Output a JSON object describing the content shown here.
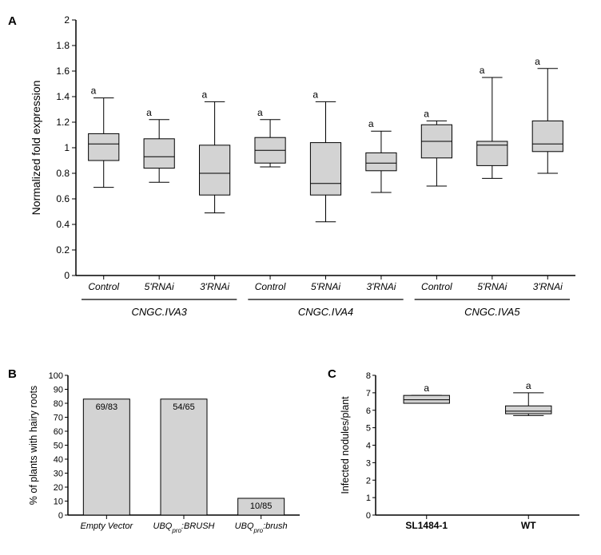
{
  "panelA": {
    "label": "A",
    "type": "boxplot",
    "ylabel": "Normalized fold expression",
    "ylabel_fontsize": 14,
    "ylim": [
      0,
      2
    ],
    "ytick_step": 0.2,
    "yticks": [
      0,
      0.2,
      0.4,
      0.6,
      0.8,
      1,
      1.2,
      1.4,
      1.6,
      1.8,
      2
    ],
    "ytick_labels": [
      "0",
      "0.2",
      "0.4",
      "0.6",
      "0.8",
      "1",
      "1.2",
      "1.4",
      "1.6",
      "1.8",
      "2"
    ],
    "groups": [
      {
        "name": "CNGC.IVA3",
        "italic": true,
        "boxes": [
          {
            "label": "Control",
            "italic": true,
            "q1": 0.9,
            "median": 1.03,
            "q3": 1.11,
            "whisker_low": 0.69,
            "whisker_high": 1.39,
            "letter": "a"
          },
          {
            "label": "5'RNAi",
            "italic": true,
            "q1": 0.84,
            "median": 0.93,
            "q3": 1.07,
            "whisker_low": 0.73,
            "whisker_high": 1.22,
            "letter": "a"
          },
          {
            "label": "3'RNAi",
            "italic": true,
            "q1": 0.63,
            "median": 0.8,
            "q3": 1.02,
            "whisker_low": 0.49,
            "whisker_high": 1.36,
            "letter": "a"
          }
        ]
      },
      {
        "name": "CNGC.IVA4",
        "italic": true,
        "boxes": [
          {
            "label": "Control",
            "italic": true,
            "q1": 0.88,
            "median": 0.98,
            "q3": 1.08,
            "whisker_low": 0.85,
            "whisker_high": 1.22,
            "letter": "a"
          },
          {
            "label": "5'RNAi",
            "italic": true,
            "q1": 0.63,
            "median": 0.72,
            "q3": 1.04,
            "whisker_low": 0.42,
            "whisker_high": 1.36,
            "letter": "a"
          },
          {
            "label": "3'RNAi",
            "italic": true,
            "q1": 0.82,
            "median": 0.88,
            "q3": 0.96,
            "whisker_low": 0.65,
            "whisker_high": 1.13,
            "letter": "a"
          }
        ]
      },
      {
        "name": "CNGC.IVA5",
        "italic": true,
        "boxes": [
          {
            "label": "Control",
            "italic": true,
            "q1": 0.92,
            "median": 1.05,
            "q3": 1.18,
            "whisker_low": 0.7,
            "whisker_high": 1.21,
            "letter": "a"
          },
          {
            "label": "5'RNAi",
            "italic": true,
            "q1": 0.86,
            "median": 1.02,
            "q3": 1.05,
            "whisker_low": 0.76,
            "whisker_high": 1.55,
            "letter": "a"
          },
          {
            "label": "3'RNAi",
            "italic": true,
            "q1": 0.97,
            "median": 1.03,
            "q3": 1.21,
            "whisker_low": 0.8,
            "whisker_high": 1.62,
            "letter": "a"
          }
        ]
      }
    ],
    "box_fill": "#d3d3d3",
    "box_stroke": "#000000",
    "whisker_stroke": "#000000",
    "background_color": "#ffffff",
    "axis_color": "#000000",
    "tick_fontsize": 12,
    "box_width": 0.55
  },
  "panelB": {
    "label": "B",
    "type": "bar",
    "ylabel": "% of plants with hairy roots",
    "ylabel_fontsize": 12.5,
    "ylim": [
      0,
      100
    ],
    "ytick_step": 10,
    "yticks": [
      0,
      10,
      20,
      30,
      40,
      50,
      60,
      70,
      80,
      90,
      100
    ],
    "bars": [
      {
        "label": "Empty Vector",
        "italic": true,
        "value": 83,
        "text": "69/83"
      },
      {
        "label": "UBQpro:BRUSH",
        "italic": true,
        "value": 83,
        "text": "54/65"
      },
      {
        "label": "UBQpro:brush",
        "italic": true,
        "value": 12,
        "text": "10/85"
      }
    ],
    "bar_fill": "#d3d3d3",
    "bar_stroke": "#000000",
    "background_color": "#ffffff",
    "axis_color": "#000000",
    "tick_fontsize": 11,
    "bar_width": 0.6
  },
  "panelC": {
    "label": "C",
    "type": "boxplot",
    "ylabel": "Infected nodules/plant",
    "ylabel_fontsize": 12.5,
    "ylim": [
      0,
      8
    ],
    "ytick_step": 1,
    "yticks": [
      0,
      1,
      2,
      3,
      4,
      5,
      6,
      7,
      8
    ],
    "boxes": [
      {
        "label": "SL1484-1",
        "q1": 6.4,
        "median": 6.6,
        "q3": 6.85,
        "whisker_low": 6.4,
        "whisker_high": 6.85,
        "letter": "a"
      },
      {
        "label": "WT",
        "q1": 5.8,
        "median": 5.95,
        "q3": 6.25,
        "whisker_low": 5.7,
        "whisker_high": 7.0,
        "letter": "a"
      }
    ],
    "box_fill": "#d3d3d3",
    "box_stroke": "#000000",
    "background_color": "#ffffff",
    "axis_color": "#000000",
    "tick_fontsize": 11,
    "box_width": 0.45
  }
}
